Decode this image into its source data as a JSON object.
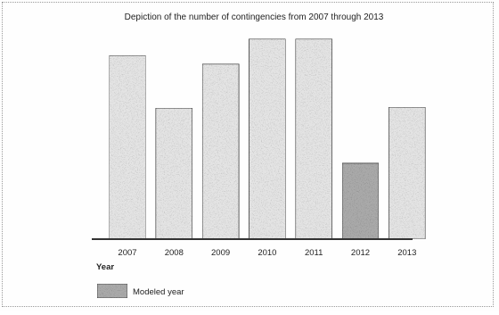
{
  "chart_data": {
    "type": "bar",
    "title": "Depiction of the number of contingencies from 2007 through 2013",
    "xlabel": "Year",
    "ylabel": "",
    "categories": [
      "2007",
      "2008",
      "2009",
      "2010",
      "2011",
      "2012",
      "2013"
    ],
    "values": [
      213,
      152,
      203,
      232,
      232,
      88,
      153
    ],
    "modeled": [
      false,
      false,
      false,
      false,
      false,
      true,
      false
    ],
    "ylim": [
      0,
      240
    ],
    "grid": false,
    "legend": {
      "position": "bottom-left",
      "entries": [
        {
          "label": "Modeled year",
          "color": "#a9a9a9"
        }
      ]
    },
    "colors": {
      "bar": "#e3e3e3",
      "modeled_bar": "#a9a9a9",
      "bar_stroke": "#3a3a3a",
      "axis": "#333333"
    }
  }
}
